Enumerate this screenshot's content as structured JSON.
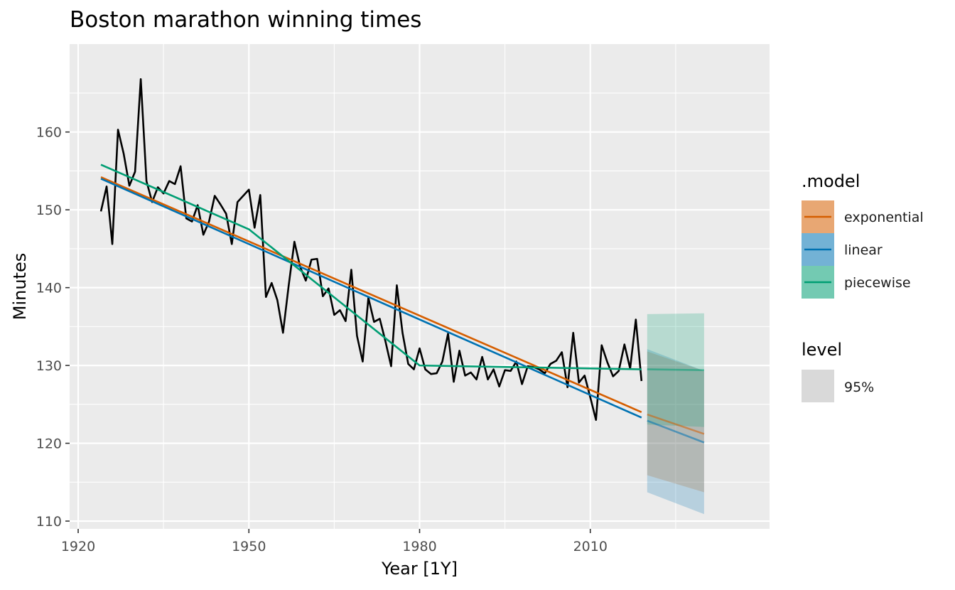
{
  "chart_data": {
    "type": "line",
    "title": "Boston marathon winning times",
    "xlabel": "Year [1Y]",
    "ylabel": "Minutes",
    "xlim": [
      1918.5,
      2041.5
    ],
    "ylim": [
      109,
      171.3
    ],
    "x_ticks": [
      1920,
      1950,
      1980,
      2010
    ],
    "y_ticks": [
      110,
      120,
      130,
      140,
      150,
      160
    ],
    "grid": true,
    "legend_position": "right",
    "legend": {
      "model_title": ".model",
      "level_title": "level",
      "level_label": "95%"
    },
    "observed": {
      "x": [
        1924,
        1925,
        1926,
        1927,
        1928,
        1929,
        1930,
        1931,
        1932,
        1933,
        1934,
        1935,
        1936,
        1937,
        1938,
        1939,
        1940,
        1941,
        1942,
        1943,
        1944,
        1945,
        1946,
        1947,
        1948,
        1949,
        1950,
        1951,
        1952,
        1953,
        1954,
        1955,
        1956,
        1957,
        1958,
        1959,
        1960,
        1961,
        1962,
        1963,
        1964,
        1965,
        1966,
        1967,
        1968,
        1969,
        1970,
        1971,
        1972,
        1973,
        1974,
        1975,
        1976,
        1977,
        1978,
        1979,
        1980,
        1981,
        1982,
        1983,
        1984,
        1985,
        1986,
        1987,
        1988,
        1989,
        1990,
        1991,
        1992,
        1993,
        1994,
        1995,
        1996,
        1997,
        1998,
        1999,
        2000,
        2001,
        2002,
        2003,
        2004,
        2005,
        2006,
        2007,
        2008,
        2009,
        2010,
        2011,
        2012,
        2013,
        2014,
        2015,
        2016,
        2017,
        2018,
        2019
      ],
      "y": [
        149.8,
        153.0,
        145.6,
        160.3,
        157.2,
        153.1,
        154.9,
        166.8,
        153.7,
        151.0,
        152.9,
        152.1,
        153.7,
        153.3,
        155.6,
        148.9,
        148.5,
        150.6,
        146.8,
        148.5,
        151.8,
        150.7,
        149.5,
        145.6,
        151.0,
        151.8,
        152.6,
        147.7,
        151.9,
        138.8,
        140.6,
        138.4,
        134.2,
        140.3,
        145.9,
        142.7,
        140.9,
        143.6,
        143.7,
        138.9,
        139.9,
        136.5,
        137.1,
        135.7,
        142.3,
        133.8,
        130.5,
        138.7,
        135.6,
        136.0,
        133.1,
        129.9,
        140.3,
        134.2,
        130.2,
        129.5,
        132.2,
        129.5,
        128.9,
        129.0,
        130.5,
        134.1,
        127.9,
        131.9,
        128.7,
        129.1,
        128.2,
        131.1,
        128.2,
        129.5,
        127.3,
        129.4,
        129.3,
        130.5,
        127.6,
        129.9,
        129.8,
        129.5,
        129.0,
        130.2,
        130.6,
        131.7,
        127.2,
        134.2,
        127.8,
        128.7,
        125.9,
        123.0,
        132.6,
        130.4,
        128.6,
        129.3,
        132.7,
        129.6,
        135.9,
        128.0
      ]
    },
    "series": [
      {
        "name": "exponential",
        "color": "#D55E00",
        "fit_x": [
          1924,
          2019
        ],
        "fit_y": [
          154.2,
          124.0
        ],
        "forecast_x": [
          2020,
          2030
        ],
        "forecast_y": [
          123.7,
          121.2
        ],
        "interval_upper": [
          131.8,
          129.3
        ],
        "interval_lower": [
          115.9,
          113.7
        ]
      },
      {
        "name": "linear",
        "color": "#0072B2",
        "fit_x": [
          1924,
          2019
        ],
        "fit_y": [
          154.0,
          123.3
        ],
        "forecast_x": [
          2020,
          2030
        ],
        "forecast_y": [
          122.9,
          120.1
        ],
        "interval_upper": [
          132.1,
          129.3
        ],
        "interval_lower": [
          113.7,
          110.9
        ]
      },
      {
        "name": "piecewise",
        "color": "#009E73",
        "fit_x": [
          1924,
          1950,
          1980,
          2019
        ],
        "fit_y": [
          155.8,
          147.5,
          130.0,
          129.5
        ],
        "forecast_x": [
          2020,
          2030
        ],
        "forecast_y": [
          129.5,
          129.4
        ],
        "interval_upper": [
          136.6,
          136.7
        ],
        "interval_lower": [
          122.4,
          122.1
        ]
      }
    ]
  }
}
